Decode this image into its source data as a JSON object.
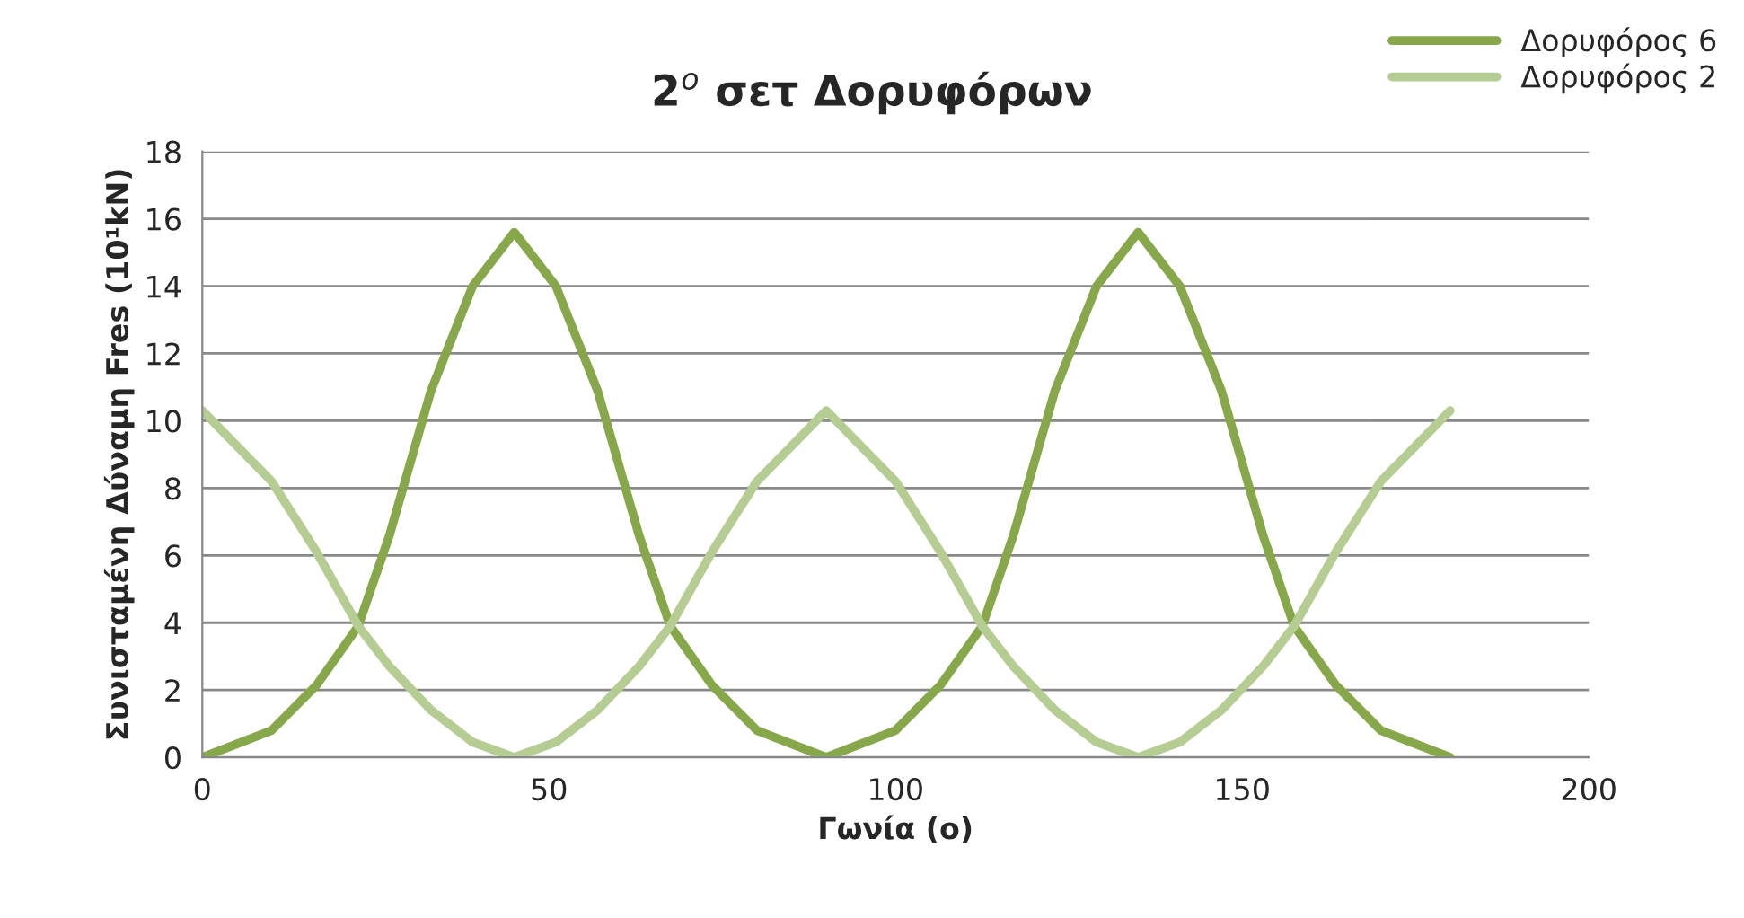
{
  "chart_data": {
    "type": "line",
    "title": "2$^{o}$ σετ Δορυφόρων",
    "xlabel": "Γωνία (o)",
    "ylabel": "Συνισταμένη Δύναμη Fres (10¹kN)",
    "x": [
      0,
      10,
      16.5,
      22.5,
      27,
      33,
      39,
      45,
      51,
      57,
      63,
      67.5,
      73.5,
      80,
      90,
      100,
      106.5,
      112.5,
      117,
      123,
      129,
      135,
      141,
      147,
      153,
      157.5,
      163.5,
      170,
      180
    ],
    "series": [
      {
        "name": "Δορυφόρος 6",
        "color": "#86a84a",
        "values": [
          0,
          0.8,
          2.15,
          3.9,
          6.6,
          10.9,
          14,
          15.6,
          14,
          10.9,
          6.6,
          3.9,
          2.15,
          0.8,
          0,
          0.8,
          2.15,
          3.9,
          6.6,
          10.9,
          14,
          15.6,
          14,
          10.9,
          6.6,
          3.9,
          2.15,
          0.8,
          0
        ]
      },
      {
        "name": "Δορυφόρος 2",
        "color": "#b5cc92",
        "values": [
          10.3,
          8.2,
          6.1,
          3.9,
          2.7,
          1.4,
          0.45,
          0,
          0.45,
          1.4,
          2.7,
          3.9,
          6.1,
          8.2,
          10.3,
          8.2,
          6.1,
          3.9,
          2.7,
          1.4,
          0.45,
          0,
          0.45,
          1.4,
          2.7,
          3.9,
          6.1,
          8.2,
          10.3
        ]
      }
    ],
    "xlim": [
      0,
      200
    ],
    "xticks": [
      0,
      50,
      100,
      150,
      200
    ],
    "ylim": [
      0,
      18
    ],
    "yticks": [
      0,
      2,
      4,
      6,
      8,
      10,
      12,
      14,
      16,
      18
    ],
    "grid": "y",
    "legend": "top right",
    "marker": "none",
    "line_style": "solid"
  }
}
